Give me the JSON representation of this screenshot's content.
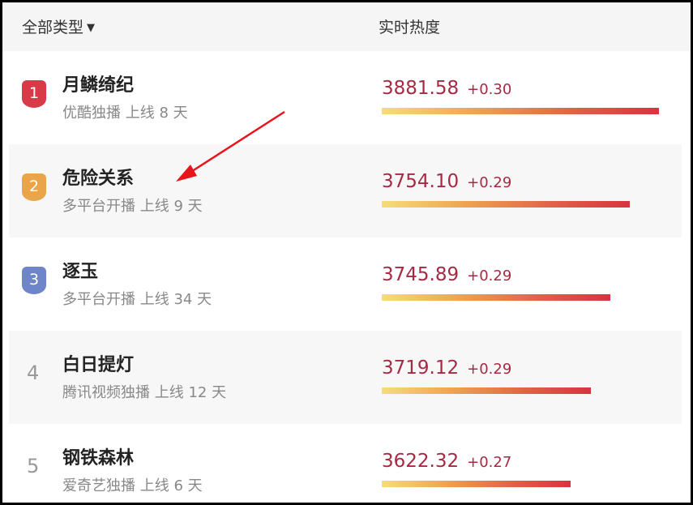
{
  "header": {
    "filter_label": "全部类型",
    "filter_icon": "triangle-down-icon",
    "hot_label": "实时热度"
  },
  "colors": {
    "rank1": "#d93a48",
    "rank2": "#eaa54a",
    "rank3": "#6e86c9",
    "score": "#a52a43",
    "arrow": "#e8141c"
  },
  "rows": [
    {
      "rank": "1",
      "title": "月鳞绮纪",
      "sub": "优酷独播 上线 8 天",
      "score": "3881.58",
      "delta": "+0.30",
      "bar_fraction": 1.0
    },
    {
      "rank": "2",
      "title": "危险关系",
      "sub": "多平台开播 上线 9 天",
      "score": "3754.10",
      "delta": "+0.29",
      "bar_fraction": 0.895
    },
    {
      "rank": "3",
      "title": "逐玉",
      "sub": "多平台开播 上线 34 天",
      "score": "3745.89",
      "delta": "+0.29",
      "bar_fraction": 0.825
    },
    {
      "rank": "4",
      "title": "白日提灯",
      "sub": "腾讯视频独播 上线 12 天",
      "score": "3719.12",
      "delta": "+0.29",
      "bar_fraction": 0.754
    },
    {
      "rank": "5",
      "title": "钢铁森林",
      "sub": "爱奇艺独播 上线 6 天",
      "score": "3622.32",
      "delta": "+0.27",
      "bar_fraction": 0.681
    }
  ]
}
